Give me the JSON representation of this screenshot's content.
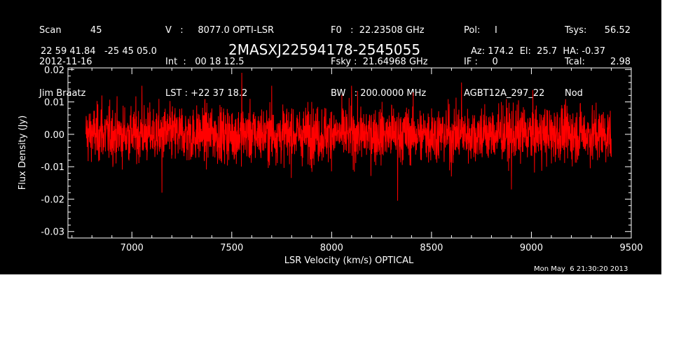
{
  "header": {
    "col1": [
      "Scan          45",
      "2012-11-16",
      "Jim Braatz"
    ],
    "col2": [
      "V   :     8077.0 OPTI-LSR",
      "Int  :   00 18 12.5",
      "LST : +22 37 18.2"
    ],
    "col3": [
      "F0   :  22.23508 GHz",
      "Fsky :  21.64968 GHz",
      "BW   : 200.0000 MHz"
    ],
    "col4": [
      "Pol:     I",
      "IF :     0",
      "AGBT12A_297_22"
    ],
    "col5a": [
      "Tsys:",
      "Tcal:",
      "Nod"
    ],
    "col5b": [
      "56.52",
      "2.98",
      ""
    ],
    "coords": "22 59 41.84   -25 45 05.0",
    "source": "2MASXJ22594178-2545055",
    "pointing": "Az: 174.2  El:  25.7  HA: -0.37",
    "timestamp": "Mon May  6 21:30:20 2013"
  },
  "colors": {
    "background": "#000000",
    "foreground": "#ffffff",
    "series": "#ff0000"
  },
  "chart_data": {
    "type": "line",
    "xlabel": "LSR Velocity (km/s) OPTICAL",
    "ylabel": "Flux Density (Jy)",
    "xlim": [
      6680,
      9500
    ],
    "ylim": [
      -0.032,
      0.0205
    ],
    "x_ticks": [
      7000,
      7500,
      8000,
      8500,
      9000,
      9500
    ],
    "y_ticks": [
      -0.03,
      -0.02,
      -0.01,
      0.0,
      0.01,
      0.02
    ],
    "x_tick_labels": [
      "7000",
      "7500",
      "8000",
      "8500",
      "9000",
      "9500"
    ],
    "y_tick_labels": [
      "-0.03",
      "-0.02",
      "-0.01",
      "0.00",
      "0.01",
      "0.02"
    ],
    "grid": false,
    "series": [
      {
        "x_start": 6770,
        "x_end": 9400,
        "mean": 0.0,
        "rms": 0.005,
        "y_max": 0.019,
        "y_min": -0.0205,
        "note_values": [
          [
            6770,
            0.0
          ],
          [
            6800,
            0.003
          ],
          [
            6850,
            0.012
          ],
          [
            6900,
            0.005
          ],
          [
            6950,
            -0.007
          ],
          [
            7000,
            0.002
          ],
          [
            7050,
            0.015
          ],
          [
            7100,
            -0.001
          ],
          [
            7150,
            -0.018
          ],
          [
            7200,
            0.007
          ],
          [
            7250,
            0.008
          ],
          [
            7300,
            -0.007
          ],
          [
            7350,
            0.001
          ],
          [
            7400,
            0.008
          ],
          [
            7450,
            -0.004
          ],
          [
            7500,
            0.006
          ],
          [
            7550,
            0.019
          ],
          [
            7600,
            -0.006
          ],
          [
            7650,
            0.002
          ],
          [
            7700,
            0.015
          ],
          [
            7750,
            -0.005
          ],
          [
            7800,
            0.008
          ],
          [
            7850,
            -0.003
          ],
          [
            7900,
            0.01
          ],
          [
            7950,
            -0.006
          ],
          [
            8000,
            0.007
          ],
          [
            8050,
            -0.002
          ],
          [
            8100,
            0.015
          ],
          [
            8150,
            -0.007
          ],
          [
            8200,
            0.006
          ],
          [
            8250,
            -0.004
          ],
          [
            8300,
            0.009
          ],
          [
            8330,
            -0.0205
          ],
          [
            8400,
            0.005
          ],
          [
            8450,
            -0.008
          ],
          [
            8500,
            0.008
          ],
          [
            8550,
            0.002
          ],
          [
            8600,
            -0.013
          ],
          [
            8650,
            0.016
          ],
          [
            8700,
            -0.004
          ],
          [
            8750,
            0.008
          ],
          [
            8800,
            -0.006
          ],
          [
            8850,
            0.01
          ],
          [
            8900,
            -0.017
          ],
          [
            8950,
            0.007
          ],
          [
            9000,
            -0.003
          ],
          [
            9050,
            0.006
          ],
          [
            9100,
            -0.009
          ],
          [
            9150,
            0.008
          ],
          [
            9200,
            -0.004
          ],
          [
            9250,
            0.007
          ],
          [
            9300,
            -0.005
          ],
          [
            9350,
            0.006
          ],
          [
            9400,
            -0.007
          ]
        ]
      }
    ]
  }
}
